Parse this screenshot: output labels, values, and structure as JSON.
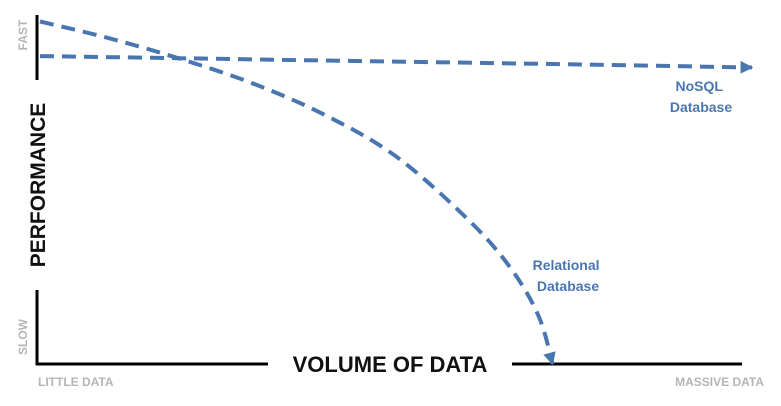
{
  "chart_data": {
    "type": "line",
    "title": "",
    "xlabel": "VOLUME OF DATA",
    "ylabel": "PERFORMANCE",
    "x_ticks": [
      "LITTLE DATA",
      "MASSIVE DATA"
    ],
    "y_ticks": [
      "SLOW",
      "FAST"
    ],
    "xlim": [
      0,
      1
    ],
    "ylim": [
      0,
      1
    ],
    "grid": false,
    "legend": "none",
    "series_color": "#4a76b0",
    "axis_color": "#000000",
    "tick_color": "#b5b5b5",
    "series": [
      {
        "name": "NoSQL Database",
        "label_lines": [
          "NoSQL",
          "Database"
        ],
        "x": [
          0,
          0.25,
          0.5,
          0.75,
          1.0
        ],
        "y": [
          0.89,
          0.882,
          0.874,
          0.866,
          0.857
        ],
        "arrow_end": true
      },
      {
        "name": "Relational Database",
        "label_lines": [
          "Relational",
          "Database"
        ],
        "x": [
          0,
          0.1,
          0.2,
          0.3,
          0.4,
          0.5,
          0.6,
          0.66,
          0.7,
          0.72
        ],
        "y": [
          0.99,
          0.94,
          0.88,
          0.81,
          0.72,
          0.6,
          0.42,
          0.28,
          0.14,
          0.0
        ],
        "arrow_end": true
      }
    ]
  }
}
